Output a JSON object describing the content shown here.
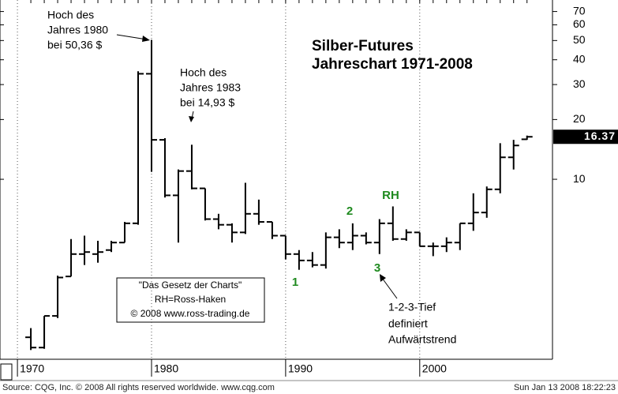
{
  "chart_data": {
    "type": "ohlc",
    "title": "Silber-Futures",
    "subtitle": "Jahreschart 1971-2008",
    "x": [
      1971,
      1972,
      1973,
      1974,
      1975,
      1976,
      1977,
      1978,
      1979,
      1980,
      1981,
      1982,
      1983,
      1984,
      1985,
      1986,
      1987,
      1988,
      1989,
      1990,
      1991,
      1992,
      1993,
      1994,
      1995,
      1996,
      1997,
      1998,
      1999,
      2000,
      2001,
      2002,
      2003,
      2004,
      2005,
      2006,
      2007,
      2008
    ],
    "open": [
      1.6,
      1.42,
      2.05,
      3.24,
      4.2,
      4.2,
      4.4,
      4.8,
      6.0,
      34,
      15.8,
      8.3,
      11.0,
      9.0,
      6.3,
      5.9,
      5.4,
      6.7,
      6.1,
      5.2,
      4.2,
      3.9,
      3.7,
      5.1,
      4.8,
      5.2,
      4.8,
      6.0,
      5.0,
      5.4,
      4.6,
      4.6,
      4.8,
      6.0,
      6.8,
      8.9,
      12.9,
      15.9
    ],
    "high": [
      1.78,
      2.05,
      3.27,
      5.0,
      5.2,
      4.9,
      4.9,
      6.1,
      35,
      50.36,
      16.1,
      11.2,
      14.93,
      9.0,
      6.7,
      6.0,
      9.6,
      7.9,
      6.1,
      5.2,
      4.4,
      4.3,
      5.4,
      5.6,
      6.0,
      5.4,
      6.3,
      7.3,
      5.6,
      5.4,
      4.8,
      5.1,
      6.0,
      8.5,
      9.2,
      15.2,
      15.8,
      16.6
    ],
    "low": [
      1.38,
      1.4,
      2.0,
      3.24,
      3.7,
      3.8,
      4.3,
      4.8,
      5.9,
      10.9,
      8.1,
      4.8,
      8.9,
      6.2,
      5.6,
      4.8,
      5.3,
      5.9,
      5.0,
      3.95,
      3.5,
      3.6,
      3.55,
      4.5,
      4.4,
      4.7,
      4.2,
      4.9,
      4.9,
      4.6,
      4.1,
      4.3,
      4.4,
      5.5,
      6.4,
      8.5,
      11.2,
      15.8
    ],
    "close": [
      1.42,
      2.05,
      3.2,
      4.2,
      4.3,
      4.3,
      4.8,
      6.0,
      34,
      15.8,
      8.3,
      11.0,
      9.0,
      6.3,
      5.9,
      5.4,
      6.7,
      6.1,
      5.2,
      4.2,
      3.9,
      3.7,
      5.1,
      4.8,
      5.2,
      4.8,
      6.0,
      5.0,
      5.4,
      4.6,
      4.6,
      4.8,
      6.0,
      6.8,
      8.9,
      12.9,
      14.8,
      16.37
    ],
    "color": "#000000",
    "log_scale": true,
    "ylim": [
      1.24,
      80
    ],
    "yticks": [
      10,
      20,
      30,
      40,
      50,
      60,
      70
    ],
    "xlim": [
      1968.7,
      2009.9
    ],
    "xticks": [
      1970,
      1980,
      1990,
      2000
    ],
    "grid_x": true,
    "last_price": 16.37,
    "annotations": {
      "high_1980": [
        "Hoch des",
        "Jahres 1980",
        "bei 50,36 $"
      ],
      "high_1983": [
        "Hoch des",
        "Jahres 1983",
        "bei 14,93 $"
      ],
      "box": [
        "\"Das Gesetz der Charts\"",
        "RH=Ross-Haken",
        "© 2008 www.ross-trading.de"
      ],
      "points": [
        "1",
        "2",
        "3",
        "RH"
      ],
      "low_note": [
        "1-2-3-Tief",
        "definiert",
        "Aufwärtstrend"
      ]
    },
    "source": "Source: CQG, Inc. © 2008 All rights reserved worldwide. www.cqg.com",
    "timestamp": "Sun Jan 13 2008 18:22:23"
  }
}
